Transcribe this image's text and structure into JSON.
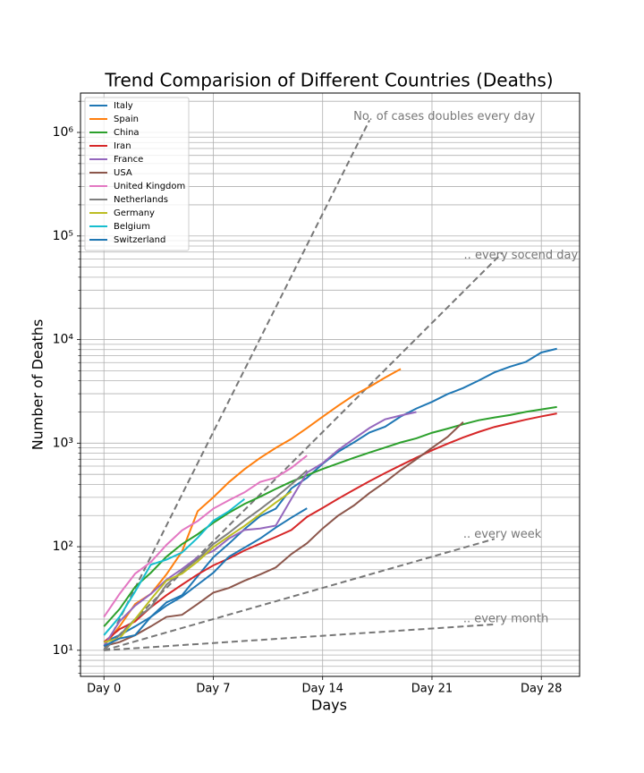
{
  "chart_data": {
    "type": "line",
    "title": "Trend Comparision of Different Countries (Deaths)",
    "xlabel": "Days",
    "ylabel": "Number of Deaths",
    "log_y": true,
    "grid": true,
    "legend": "upper left",
    "xlim": [
      -1.5,
      30.45
    ],
    "ylim": [
      5.6,
      2400000
    ],
    "xticks": [
      {
        "value": 0,
        "label": "Day 0"
      },
      {
        "value": 7,
        "label": "Day 7"
      },
      {
        "value": 14,
        "label": "Day 14"
      },
      {
        "value": 21,
        "label": "Day 21"
      },
      {
        "value": 28,
        "label": "Day 28"
      }
    ],
    "yticks": [
      {
        "value": 10,
        "label": "10¹"
      },
      {
        "value": 100,
        "label": "10²"
      },
      {
        "value": 1000,
        "label": "10³"
      },
      {
        "value": 10000,
        "label": "10⁴"
      },
      {
        "value": 100000,
        "label": "10⁵"
      },
      {
        "value": 1000000,
        "label": "10⁶"
      }
    ],
    "yticks_minor": [
      6,
      7,
      8,
      9,
      20,
      30,
      40,
      50,
      60,
      70,
      80,
      90,
      200,
      300,
      400,
      500,
      600,
      700,
      800,
      900,
      2000,
      3000,
      4000,
      5000,
      6000,
      7000,
      8000,
      9000,
      20000,
      30000,
      40000,
      50000,
      60000,
      70000,
      80000,
      90000,
      200000,
      300000,
      400000,
      500000,
      600000,
      700000,
      800000,
      900000,
      2000000
    ],
    "series": [
      {
        "name": "Italy",
        "color": "#1f77b4",
        "x": [
          0,
          1,
          2,
          3,
          4,
          5,
          6,
          7,
          8,
          9,
          10,
          11,
          12,
          13,
          14,
          15,
          16,
          17,
          18,
          19,
          20,
          21,
          22,
          23,
          24,
          25,
          26,
          27,
          28,
          29
        ],
        "values": [
          12,
          14,
          17,
          21,
          29,
          34,
          52,
          79,
          107,
          148,
          197,
          233,
          366,
          463,
          631,
          827,
          1016,
          1266,
          1441,
          1809,
          2158,
          2503,
          2978,
          3405,
          4032,
          4825,
          5476,
          6077,
          7503,
          8165
        ]
      },
      {
        "name": "Spain",
        "color": "#ff7f0e",
        "x": [
          0,
          1,
          2,
          3,
          4,
          5,
          6,
          7,
          8,
          9,
          10,
          11,
          12,
          13,
          14,
          15,
          16,
          17,
          18,
          19
        ],
        "values": [
          11,
          17,
          28,
          35,
          54,
          90,
          220,
          300,
          420,
          560,
          720,
          900,
          1100,
          1400,
          1800,
          2300,
          2900,
          3500,
          4300,
          5200
        ]
      },
      {
        "name": "China",
        "color": "#2ca02c",
        "x": [
          0,
          1,
          2,
          3,
          4,
          5,
          6,
          7,
          8,
          9,
          10,
          11,
          12,
          13,
          14,
          15,
          16,
          17,
          18,
          19,
          20,
          21,
          22,
          23,
          24,
          25,
          26,
          27,
          28,
          29
        ],
        "values": [
          17,
          25,
          41,
          56,
          80,
          106,
          132,
          170,
          213,
          259,
          304,
          361,
          425,
          490,
          563,
          637,
          722,
          811,
          908,
          1016,
          1113,
          1259,
          1380,
          1523,
          1665,
          1770,
          1868,
          2004,
          2118,
          2236
        ]
      },
      {
        "name": "Iran",
        "color": "#d62728",
        "x": [
          0,
          1,
          2,
          3,
          4,
          5,
          6,
          7,
          8,
          9,
          10,
          11,
          12,
          13,
          14,
          15,
          16,
          17,
          18,
          19,
          20,
          21,
          22,
          23,
          24,
          25,
          26,
          27,
          28,
          29
        ],
        "values": [
          12,
          16,
          19,
          26,
          34,
          43,
          54,
          66,
          77,
          92,
          107,
          124,
          145,
          194,
          237,
          291,
          354,
          429,
          514,
          611,
          724,
          853,
          988,
          1135,
          1284,
          1433,
          1556,
          1685,
          1812,
          1934
        ]
      },
      {
        "name": "France",
        "color": "#9467bd",
        "x": [
          0,
          1,
          2,
          3,
          4,
          5,
          6,
          7,
          8,
          9,
          10,
          11,
          12,
          13,
          14,
          15,
          16,
          17,
          18,
          19,
          20
        ],
        "values": [
          11,
          19,
          27,
          35,
          48,
          61,
          79,
          91,
          120,
          145,
          150,
          160,
          290,
          520,
          640,
          860,
          1100,
          1400,
          1700,
          1850,
          2000
        ]
      },
      {
        "name": "USA",
        "color": "#8c564b",
        "x": [
          0,
          1,
          2,
          3,
          4,
          5,
          6,
          7,
          8,
          9,
          10,
          11,
          12,
          13,
          14,
          15,
          16,
          17,
          18,
          19,
          20,
          21,
          22,
          23
        ],
        "values": [
          11,
          12,
          14,
          17,
          21,
          22,
          28,
          36,
          40,
          47,
          54,
          63,
          85,
          108,
          150,
          200,
          250,
          330,
          420,
          550,
          700,
          900,
          1150,
          1600
        ]
      },
      {
        "name": "United Kingdom",
        "color": "#e377c2",
        "x": [
          0,
          1,
          2,
          3,
          4,
          5,
          6,
          7,
          8,
          9,
          10,
          11,
          12,
          13
        ],
        "values": [
          21,
          35,
          55,
          71,
          104,
          144,
          177,
          233,
          281,
          335,
          422,
          465,
          578,
          759
        ]
      },
      {
        "name": "Netherlands",
        "color": "#7f7f7f",
        "x": [
          0,
          1,
          2,
          3,
          4,
          5,
          6,
          7,
          8,
          9,
          10,
          11,
          12,
          13
        ],
        "values": [
          10,
          14,
          20,
          26,
          43,
          58,
          76,
          106,
          136,
          179,
          230,
          300,
          400,
          546
        ]
      },
      {
        "name": "Germany",
        "color": "#bcbd22",
        "x": [
          0,
          1,
          2,
          3,
          4,
          5,
          6,
          7,
          8,
          9,
          10,
          11,
          12
        ],
        "values": [
          12,
          13,
          20,
          31,
          47,
          55,
          72,
          99,
          126,
          159,
          206,
          267,
          342
        ]
      },
      {
        "name": "Belgium",
        "color": "#17becf",
        "x": [
          0,
          1,
          2,
          3,
          4,
          5,
          6,
          7,
          8,
          9
        ],
        "values": [
          14,
          21,
          37,
          67,
          75,
          88,
          122,
          178,
          220,
          289
        ]
      },
      {
        "name": "Switzerland",
        "color": "#1f77b4",
        "x": [
          0,
          1,
          2,
          3,
          4,
          5,
          6,
          7,
          8,
          9,
          10,
          11,
          12,
          13
        ],
        "values": [
          11,
          13,
          14,
          21,
          27,
          33,
          43,
          56,
          80,
          98,
          120,
          153,
          191,
          235
        ]
      }
    ],
    "reference_lines": [
      {
        "label": "No. of cases doubles every day",
        "color": "#777777",
        "x": [
          0,
          17
        ],
        "values": [
          10,
          1310720
        ]
      },
      {
        "label": ".. every socend day",
        "color": "#777777",
        "x": [
          0,
          25.5
        ],
        "values": [
          10,
          68900
        ]
      },
      {
        "label": ".. every week",
        "color": "#777777",
        "x": [
          0,
          25
        ],
        "values": [
          10,
          119
        ]
      },
      {
        "label": ".. every month",
        "color": "#777777",
        "x": [
          0,
          25
        ],
        "values": [
          10,
          17.8
        ]
      }
    ]
  }
}
